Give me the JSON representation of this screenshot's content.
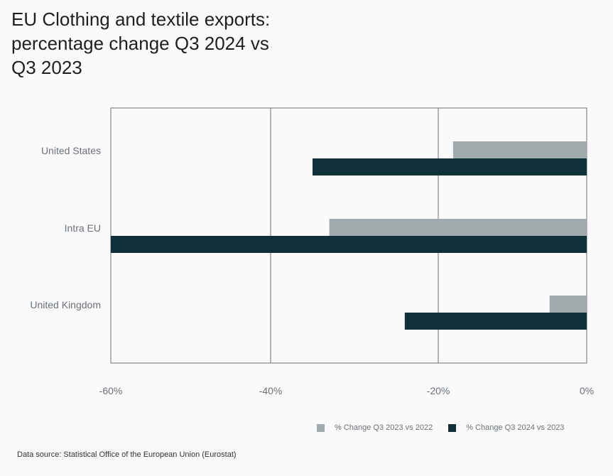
{
  "title_lines": [
    "EU Clothing and textile exports:",
    "percentage change Q3 2024 vs",
    "Q3 2023"
  ],
  "source": "Data source: Statistical Office of the European Union (Eurostat)",
  "colors": {
    "series1": "#a0abae",
    "series2": "#11313a",
    "grid": "#6b7472"
  },
  "chart_data": {
    "type": "bar",
    "orientation": "horizontal",
    "title": "EU Clothing and textile exports: percentage change Q3 2024 vs Q3 2023",
    "categories": [
      "United States",
      "Intra EU",
      "United Kingdom"
    ],
    "series": [
      {
        "name": "% Change Q3 2023 vs 2022",
        "values": [
          -18,
          -33,
          -5
        ]
      },
      {
        "name": "% Change Q3 2024 vs 2023",
        "values": [
          -35,
          -60,
          -24
        ]
      }
    ],
    "x_ticks": [
      "-60%",
      "-40%",
      "-20%",
      "0%"
    ],
    "x_tick_values": [
      -60,
      -40,
      -20,
      0
    ],
    "xlim": [
      -60,
      0
    ],
    "grid": true,
    "legend_position": "bottom-right"
  }
}
